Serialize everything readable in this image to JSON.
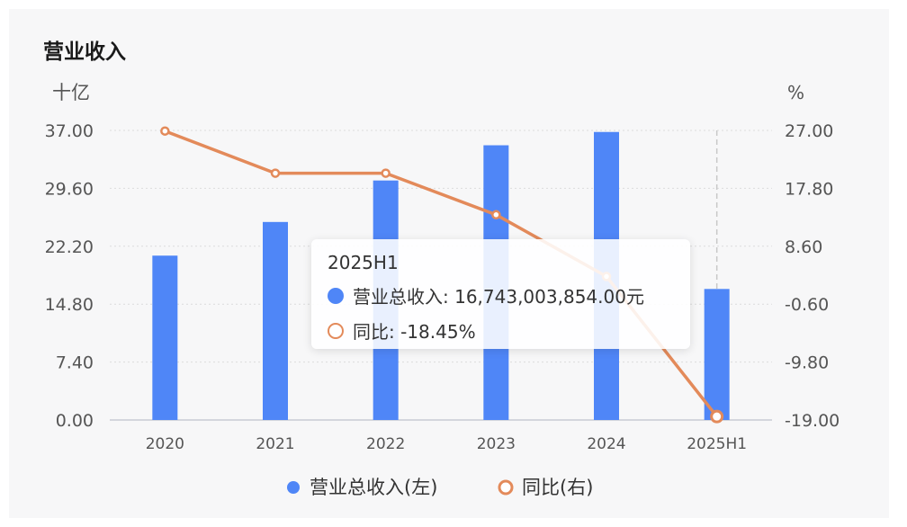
{
  "title": "营业收入",
  "colors": {
    "bar": "#4f86f7",
    "line": "#e38a5a",
    "axis_text": "#555555",
    "grid": "#dcdcdc"
  },
  "tooltip": {
    "title": "2025H1",
    "bar_label": "营业总收入: 16,743,003,854.00元",
    "line_label": "同比: -18.45%"
  },
  "chart_data": {
    "type": "bar",
    "categories": [
      "2020",
      "2021",
      "2022",
      "2023",
      "2024",
      "2025H1"
    ],
    "left_unit": "十亿",
    "right_unit": "%",
    "left_ticks": [
      "0.00",
      "7.40",
      "14.80",
      "22.20",
      "29.60",
      "37.00"
    ],
    "right_ticks": [
      "-19.00",
      "-9.80",
      "-0.60",
      "8.60",
      "17.80",
      "27.00"
    ],
    "ylim_left": [
      0,
      37
    ],
    "ylim_right": [
      -19,
      27
    ],
    "series": [
      {
        "name": "营业总收入(左)",
        "type": "bar",
        "axis": "left",
        "values": [
          21.0,
          25.3,
          30.6,
          35.1,
          36.8,
          16.74
        ]
      },
      {
        "name": "同比(右)",
        "type": "line",
        "axis": "right",
        "values": [
          26.9,
          20.2,
          20.2,
          13.6,
          3.8,
          -18.45
        ]
      }
    ],
    "highlight_category": "2025H1"
  }
}
